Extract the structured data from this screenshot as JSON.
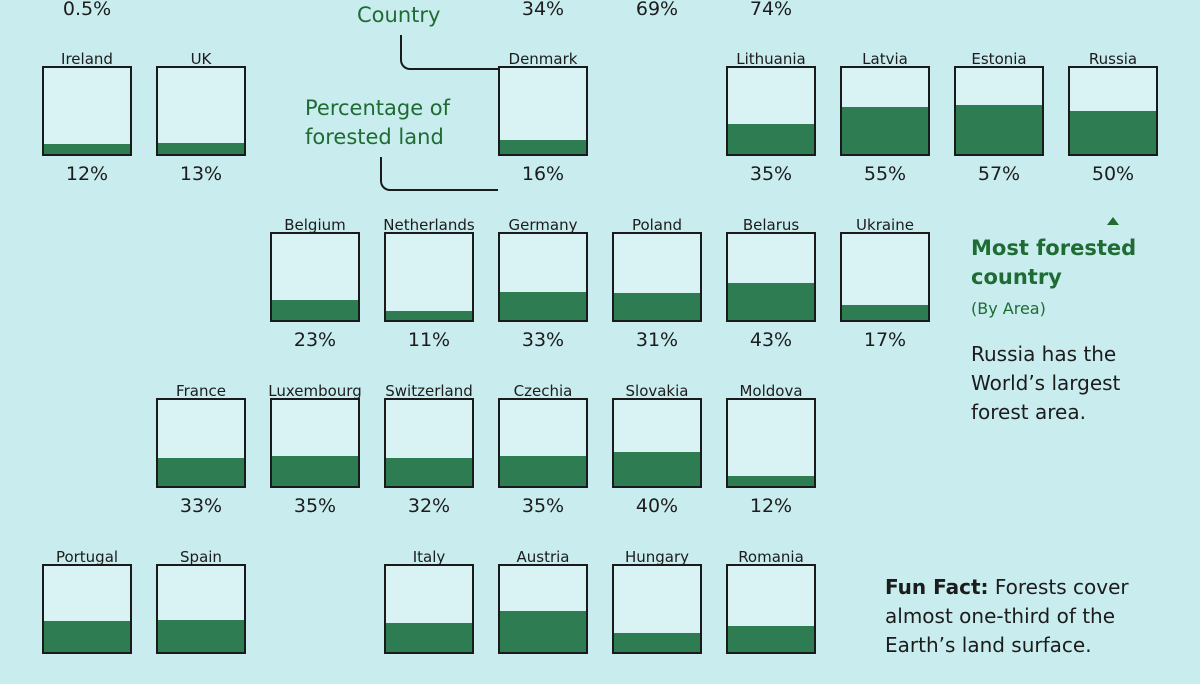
{
  "chart_data": {
    "type": "table",
    "title": "",
    "description": "Percentage of forested land by European country, shown as partially filled squares arranged in a map-like grid.",
    "cells": [
      {
        "country": "",
        "value": 0.5,
        "label": "0.5%"
      },
      {
        "country": "",
        "value": 34,
        "label": "34%"
      },
      {
        "country": "",
        "value": 69,
        "label": "69%"
      },
      {
        "country": "",
        "value": 74,
        "label": "74%"
      },
      {
        "country": "Ireland",
        "value": 12,
        "label": "12%"
      },
      {
        "country": "UK",
        "value": 13,
        "label": "13%"
      },
      {
        "country": "Denmark",
        "value": 16,
        "label": "16%"
      },
      {
        "country": "Lithuania",
        "value": 35,
        "label": "35%"
      },
      {
        "country": "Latvia",
        "value": 55,
        "label": "55%"
      },
      {
        "country": "Estonia",
        "value": 57,
        "label": "57%"
      },
      {
        "country": "Russia",
        "value": 50,
        "label": "50%"
      },
      {
        "country": "Belgium",
        "value": 23,
        "label": "23%"
      },
      {
        "country": "Netherlands",
        "value": 11,
        "label": "11%"
      },
      {
        "country": "Germany",
        "value": 33,
        "label": "33%"
      },
      {
        "country": "Poland",
        "value": 31,
        "label": "31%"
      },
      {
        "country": "Belarus",
        "value": 43,
        "label": "43%"
      },
      {
        "country": "Ukraine",
        "value": 17,
        "label": "17%"
      },
      {
        "country": "France",
        "value": 33,
        "label": "33%"
      },
      {
        "country": "Luxembourg",
        "value": 35,
        "label": "35%"
      },
      {
        "country": "Switzerland",
        "value": 32,
        "label": "32%"
      },
      {
        "country": "Czechia",
        "value": 35,
        "label": "35%"
      },
      {
        "country": "Slovakia",
        "value": 40,
        "label": "40%"
      },
      {
        "country": "Moldova",
        "value": 12,
        "label": "12%"
      },
      {
        "country": "Portugal",
        "value": 36,
        "label": ""
      },
      {
        "country": "Spain",
        "value": 37,
        "label": ""
      },
      {
        "country": "Italy",
        "value": 34,
        "label": ""
      },
      {
        "country": "Austria",
        "value": 48,
        "label": ""
      },
      {
        "country": "Hungary",
        "value": 22,
        "label": ""
      },
      {
        "country": "Romania",
        "value": 30,
        "label": ""
      }
    ],
    "fill_color": "#2e7d52",
    "background_color": "#c9ecee"
  },
  "legend": {
    "country_label": "Country",
    "percentage_label_1": "Percentage of",
    "percentage_label_2": "forested land"
  },
  "notes": {
    "most_forested_1": "Most forested",
    "most_forested_2": "country",
    "by_area": "(By Area)",
    "russia_1": "Russia has the",
    "russia_2": "World’s largest",
    "russia_3": "forest area.",
    "fun_fact_bold": "Fun Fact:",
    "fun_fact_1": " Forests cover",
    "fun_fact_2": "almost one-third of the",
    "fun_fact_3": "Earth’s land surface."
  },
  "colors": {
    "accent_green": "#1e6b33",
    "fill_green": "#2e7d52",
    "background": "#c9ecee"
  }
}
